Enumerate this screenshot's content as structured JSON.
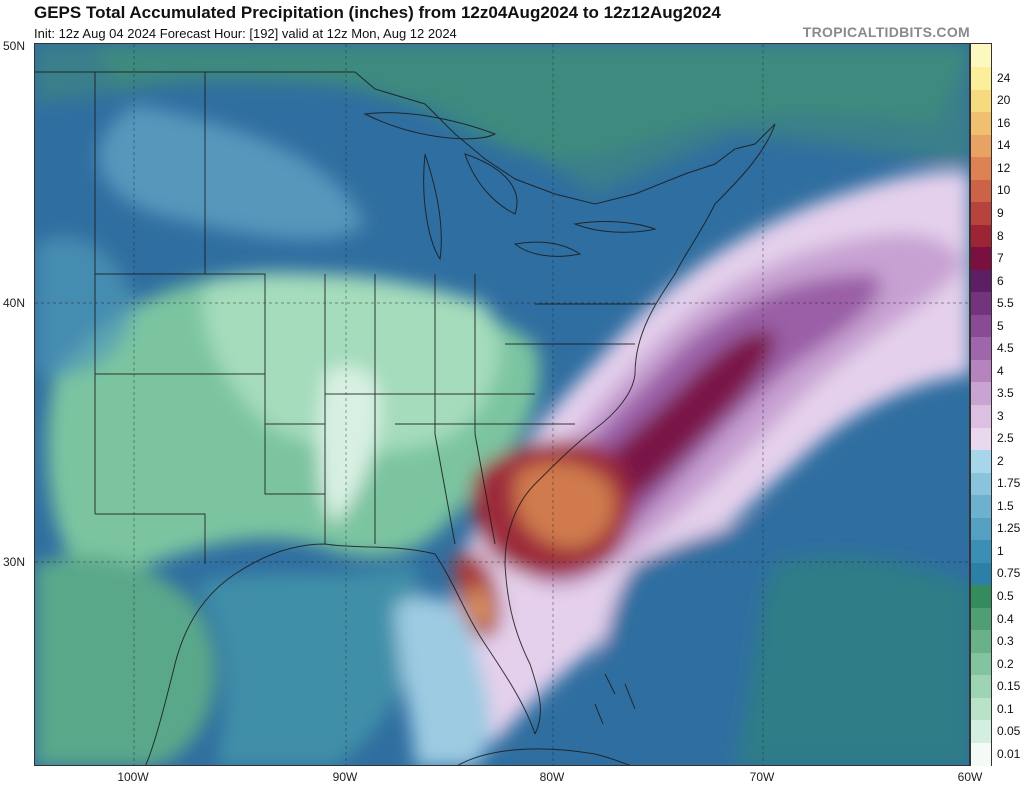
{
  "header": {
    "title": "GEPS Total Accumulated Precipitation (inches) from 12z04Aug2024 to 12z12Aug2024",
    "subtitle": "Init: 12z Aug 04 2024   Forecast Hour: [192]   valid at 12z Mon, Aug 12 2024",
    "brand": "TROPICALTIDBITS.COM"
  },
  "map": {
    "lat_labels": [
      "50N",
      "40N",
      "30N"
    ],
    "lon_labels": [
      "100W",
      "90W",
      "80W",
      "70W",
      "60W"
    ]
  },
  "legend": {
    "levels": [
      {
        "label": "0.01",
        "color": "#f4fbf7"
      },
      {
        "label": "0.05",
        "color": "#d3efdf"
      },
      {
        "label": "0.1",
        "color": "#b8e3c9"
      },
      {
        "label": "0.15",
        "color": "#9ed4b4"
      },
      {
        "label": "0.2",
        "color": "#84c39f"
      },
      {
        "label": "0.3",
        "color": "#6ab18a"
      },
      {
        "label": "0.4",
        "color": "#4f9e74"
      },
      {
        "label": "0.5",
        "color": "#348b5e"
      },
      {
        "label": "0.75",
        "color": "#2c7fa6"
      },
      {
        "label": "1",
        "color": "#3c8fb4"
      },
      {
        "label": "1.25",
        "color": "#549fc2"
      },
      {
        "label": "1.5",
        "color": "#6eb1cf"
      },
      {
        "label": "1.75",
        "color": "#8ac3dc"
      },
      {
        "label": "2",
        "color": "#a6d6ea"
      },
      {
        "label": "2.5",
        "color": "#ead8ee"
      },
      {
        "label": "3",
        "color": "#dcc0e2"
      },
      {
        "label": "3.5",
        "color": "#c9a3d2"
      },
      {
        "label": "4",
        "color": "#b584bf"
      },
      {
        "label": "4.5",
        "color": "#a066ab"
      },
      {
        "label": "5",
        "color": "#8a4b95"
      },
      {
        "label": "5.5",
        "color": "#73347d"
      },
      {
        "label": "6",
        "color": "#5c1f63"
      },
      {
        "label": "7",
        "color": "#7a1040"
      },
      {
        "label": "8",
        "color": "#9c2435"
      },
      {
        "label": "9",
        "color": "#b8423c"
      },
      {
        "label": "10",
        "color": "#cc6248"
      },
      {
        "label": "12",
        "color": "#dc8255"
      },
      {
        "label": "14",
        "color": "#e8a264"
      },
      {
        "label": "16",
        "color": "#f0c070"
      },
      {
        "label": "20",
        "color": "#f6da80"
      },
      {
        "label": "24",
        "color": "#fbef9a"
      },
      {
        "label": "",
        "color": "#fdf8c0"
      }
    ]
  }
}
